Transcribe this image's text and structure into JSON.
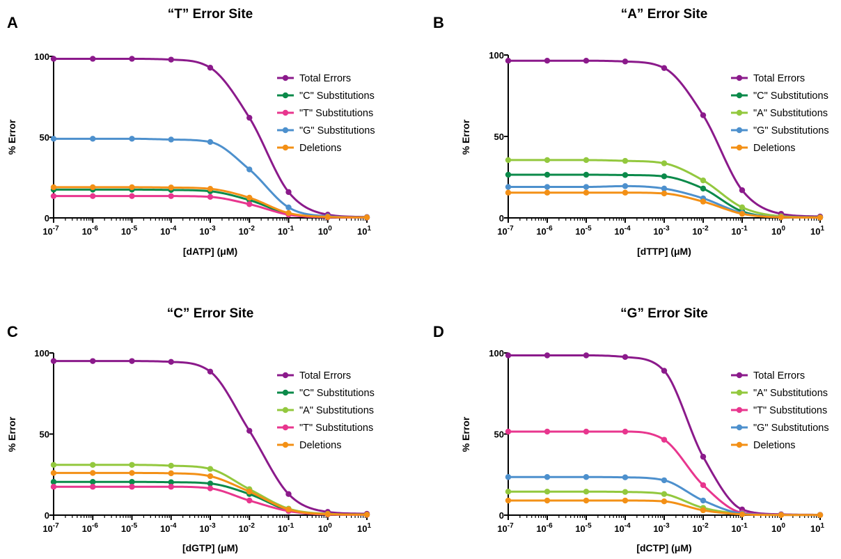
{
  "chart_data": [
    {
      "panel": "A",
      "type": "line",
      "title": "“T” Error Site",
      "xlabel": "[dATP] (μM)",
      "ylabel": "% Error",
      "xscale": "log",
      "x": [
        1e-07,
        1e-06,
        1e-05,
        0.0001,
        0.001,
        0.01,
        0.1,
        1,
        10
      ],
      "x_tick_labels": [
        {
          "base": "10",
          "exp": "-7"
        },
        {
          "base": "10",
          "exp": "-6"
        },
        {
          "base": "10",
          "exp": "-5"
        },
        {
          "base": "10",
          "exp": "-4"
        },
        {
          "base": "10",
          "exp": "-3"
        },
        {
          "base": "10",
          "exp": "-2"
        },
        {
          "base": "10",
          "exp": "-1"
        },
        {
          "base": "10",
          "exp": "0"
        },
        {
          "base": "10",
          "exp": "1"
        }
      ],
      "y_ticks": [
        0,
        50,
        100
      ],
      "ylim": [
        0,
        100
      ],
      "legend_position": "right",
      "series": [
        {
          "name": "Total Errors",
          "color": "#8B1A8B",
          "values": [
            98.5,
            98.5,
            98.5,
            98,
            93,
            62,
            16,
            2,
            0.5
          ]
        },
        {
          "name": "\"C\" Substitutions",
          "color": "#0B8A4A",
          "values": [
            17.5,
            17.5,
            17.5,
            17.3,
            16.5,
            11,
            2.5,
            0.5,
            0.3
          ]
        },
        {
          "name": "\"T\" Substitutions",
          "color": "#E8368E",
          "values": [
            13.5,
            13.5,
            13.5,
            13.5,
            13,
            8.5,
            2,
            0.4,
            0.2
          ]
        },
        {
          "name": "\"G\" Substitutions",
          "color": "#4D90CD",
          "values": [
            49,
            49,
            49,
            48.5,
            47,
            30,
            6.5,
            1,
            0.3
          ]
        },
        {
          "name": "Deletions",
          "color": "#F39016",
          "values": [
            19,
            19,
            19,
            18.8,
            18,
            12.5,
            3,
            0.6,
            0.3
          ]
        }
      ]
    },
    {
      "panel": "B",
      "type": "line",
      "title": "“A” Error Site",
      "xlabel": "[dTTP] (μM)",
      "ylabel": "% Error",
      "xscale": "log",
      "x": [
        1e-07,
        1e-06,
        1e-05,
        0.0001,
        0.001,
        0.01,
        0.1,
        1,
        10
      ],
      "x_tick_labels": [
        {
          "base": "10",
          "exp": "-7"
        },
        {
          "base": "10",
          "exp": "-6"
        },
        {
          "base": "10",
          "exp": "-5"
        },
        {
          "base": "10",
          "exp": "-4"
        },
        {
          "base": "10",
          "exp": "-3"
        },
        {
          "base": "10",
          "exp": "-2"
        },
        {
          "base": "10",
          "exp": "-1"
        },
        {
          "base": "10",
          "exp": "0"
        },
        {
          "base": "10",
          "exp": "1"
        }
      ],
      "y_ticks": [
        0,
        50,
        100
      ],
      "ylim": [
        0,
        100
      ],
      "legend_position": "right",
      "series": [
        {
          "name": "Total Errors",
          "color": "#8B1A8B",
          "values": [
            96.5,
            96.5,
            96.5,
            96,
            92,
            63,
            17,
            2.5,
            0.8
          ]
        },
        {
          "name": "\"C\" Substitutions",
          "color": "#0B8A4A",
          "values": [
            26.5,
            26.5,
            26.5,
            26.3,
            25.5,
            18,
            4,
            0.6,
            0.3
          ]
        },
        {
          "name": "\"A\" Substitutions",
          "color": "#93C83E",
          "values": [
            35.5,
            35.5,
            35.5,
            35,
            33.5,
            23,
            6.5,
            1,
            0.3
          ]
        },
        {
          "name": "\"G\" Substitutions",
          "color": "#4D90CD",
          "values": [
            19,
            19,
            19,
            19.5,
            18,
            12,
            3,
            0.5,
            0.2
          ]
        },
        {
          "name": "Deletions",
          "color": "#F39016",
          "values": [
            15.5,
            15.5,
            15.5,
            15.5,
            15,
            10,
            2.5,
            0.4,
            0.2
          ]
        }
      ]
    },
    {
      "panel": "C",
      "type": "line",
      "title": "“C” Error Site",
      "xlabel": "[dGTP] (μM)",
      "ylabel": "% Error",
      "xscale": "log",
      "x": [
        1e-07,
        1e-06,
        1e-05,
        0.0001,
        0.001,
        0.01,
        0.1,
        1,
        10
      ],
      "x_tick_labels": [
        {
          "base": "10",
          "exp": "-7"
        },
        {
          "base": "10",
          "exp": "-6"
        },
        {
          "base": "10",
          "exp": "-5"
        },
        {
          "base": "10",
          "exp": "-4"
        },
        {
          "base": "10",
          "exp": "-3"
        },
        {
          "base": "10",
          "exp": "-2"
        },
        {
          "base": "10",
          "exp": "-1"
        },
        {
          "base": "10",
          "exp": "0"
        },
        {
          "base": "10",
          "exp": "1"
        }
      ],
      "y_ticks": [
        0,
        50,
        100
      ],
      "ylim": [
        0,
        100
      ],
      "legend_position": "right",
      "series": [
        {
          "name": "Total Errors",
          "color": "#8B1A8B",
          "values": [
            95,
            95,
            95,
            94.5,
            88.5,
            52,
            13,
            2,
            0.8
          ]
        },
        {
          "name": "\"C\" Substitutions",
          "color": "#0B8A4A",
          "values": [
            20.5,
            20.5,
            20.5,
            20.3,
            19.5,
            13,
            3,
            0.5,
            0.3
          ]
        },
        {
          "name": "\"A\" Substitutions",
          "color": "#93C83E",
          "values": [
            31,
            31,
            31,
            30.5,
            28.5,
            16,
            4,
            0.8,
            0.3
          ]
        },
        {
          "name": "\"T\" Substitutions",
          "color": "#E8368E",
          "values": [
            17.5,
            17.5,
            17.5,
            17.5,
            16.5,
            9,
            2.5,
            0.4,
            0.2
          ]
        },
        {
          "name": "Deletions",
          "color": "#F39016",
          "values": [
            26,
            26,
            26,
            25.8,
            24,
            14.5,
            3.5,
            0.6,
            0.3
          ]
        }
      ]
    },
    {
      "panel": "D",
      "type": "line",
      "title": "“G” Error Site",
      "xlabel": "[dCTP] (μM)",
      "ylabel": "% Error",
      "xscale": "log",
      "x": [
        1e-07,
        1e-06,
        1e-05,
        0.0001,
        0.001,
        0.01,
        0.1,
        1,
        10
      ],
      "x_tick_labels": [
        {
          "base": "10",
          "exp": "-7"
        },
        {
          "base": "10",
          "exp": "-6"
        },
        {
          "base": "10",
          "exp": "-5"
        },
        {
          "base": "10",
          "exp": "-4"
        },
        {
          "base": "10",
          "exp": "-3"
        },
        {
          "base": "10",
          "exp": "-2"
        },
        {
          "base": "10",
          "exp": "-1"
        },
        {
          "base": "10",
          "exp": "0"
        },
        {
          "base": "10",
          "exp": "1"
        }
      ],
      "y_ticks": [
        0,
        50,
        100
      ],
      "ylim": [
        0,
        100
      ],
      "legend_position": "right",
      "series": [
        {
          "name": "Total Errors",
          "color": "#8B1A8B",
          "values": [
            98.5,
            98.5,
            98.5,
            97.5,
            89,
            36,
            3.5,
            0.5,
            0.2
          ]
        },
        {
          "name": "\"A\" Substitutions",
          "color": "#93C83E",
          "values": [
            14.5,
            14.5,
            14.5,
            14.3,
            13,
            4.5,
            0.8,
            0.2,
            0.1
          ]
        },
        {
          "name": "\"T\" Substitutions",
          "color": "#E8368E",
          "values": [
            51.5,
            51.5,
            51.5,
            51.5,
            46.5,
            18.5,
            1.5,
            0.3,
            0.1
          ]
        },
        {
          "name": "\"G\" Substitutions",
          "color": "#4D90CD",
          "values": [
            23.5,
            23.5,
            23.5,
            23.3,
            21.5,
            9,
            1,
            0.2,
            0.1
          ]
        },
        {
          "name": "Deletions",
          "color": "#F39016",
          "values": [
            9,
            9,
            9,
            9,
            8.5,
            3,
            0.5,
            0.1,
            0.1
          ]
        }
      ]
    }
  ]
}
